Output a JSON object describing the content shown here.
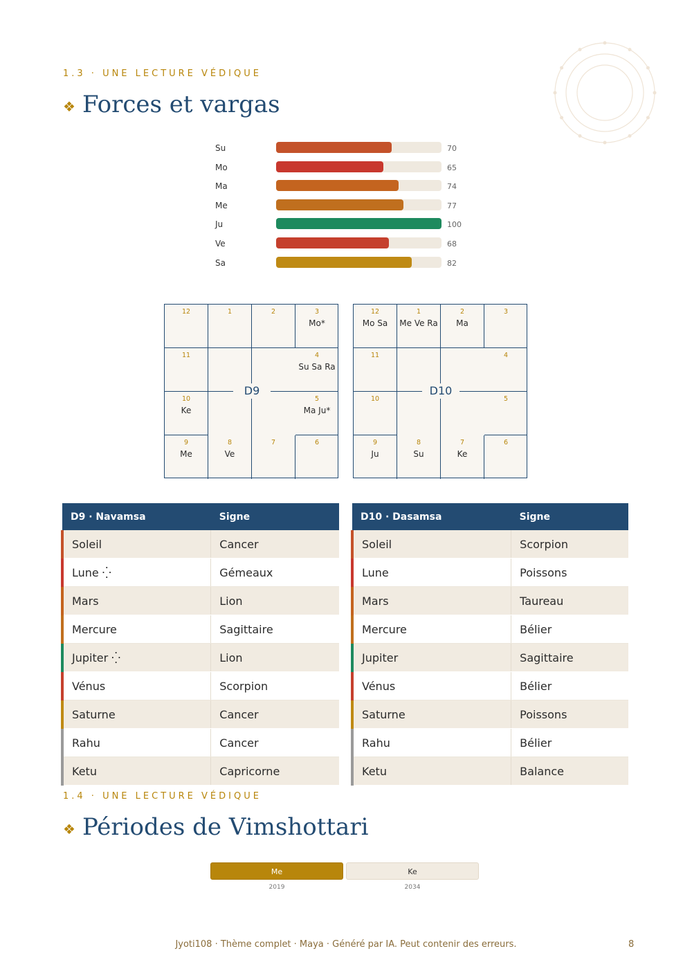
{
  "section1": {
    "eyebrow": "1.3 · UNE LECTURE VÉDIQUE",
    "title": "Forces et vargas"
  },
  "strengths": [
    {
      "planet": "Su",
      "value": 70,
      "color": "#c4522a"
    },
    {
      "planet": "Mo",
      "value": 65,
      "color": "#c8382e"
    },
    {
      "planet": "Ma",
      "value": 74,
      "color": "#c4641f"
    },
    {
      "planet": "Me",
      "value": 77,
      "color": "#c06f1e"
    },
    {
      "planet": "Ju",
      "value": 100,
      "color": "#1e8a5e"
    },
    {
      "planet": "Ve",
      "value": 68,
      "color": "#c5402d"
    },
    {
      "planet": "Sa",
      "value": 82,
      "color": "#bf8a14"
    }
  ],
  "charts": [
    {
      "name": "D9",
      "cells": [
        {
          "house": "12",
          "planets": ""
        },
        {
          "house": "1",
          "planets": ""
        },
        {
          "house": "2",
          "planets": ""
        },
        {
          "house": "3",
          "planets": "Mo*"
        },
        {
          "house": "11",
          "planets": ""
        },
        {
          "house": "4",
          "planets": "Su Sa Ra"
        },
        {
          "house": "10",
          "planets": "Ke"
        },
        {
          "house": "5",
          "planets": "Ma Ju*"
        },
        {
          "house": "9",
          "planets": "Me"
        },
        {
          "house": "8",
          "planets": "Ve"
        },
        {
          "house": "7",
          "planets": ""
        },
        {
          "house": "6",
          "planets": ""
        }
      ]
    },
    {
      "name": "D10",
      "cells": [
        {
          "house": "12",
          "planets": "Mo Sa"
        },
        {
          "house": "1",
          "planets": "Me Ve Ra"
        },
        {
          "house": "2",
          "planets": "Ma"
        },
        {
          "house": "3",
          "planets": ""
        },
        {
          "house": "11",
          "planets": ""
        },
        {
          "house": "4",
          "planets": ""
        },
        {
          "house": "10",
          "planets": ""
        },
        {
          "house": "5",
          "planets": ""
        },
        {
          "house": "9",
          "planets": "Ju"
        },
        {
          "house": "8",
          "planets": "Su"
        },
        {
          "house": "7",
          "planets": "Ke"
        },
        {
          "house": "6",
          "planets": ""
        }
      ]
    }
  ],
  "tables": [
    {
      "headers": [
        "D9 · Navamsa",
        "Signe"
      ],
      "rows": [
        {
          "planet": "Soleil",
          "sign": "Cancer",
          "color": "#c4522a"
        },
        {
          "planet": "Lune ⁛",
          "sign": "Gémeaux",
          "color": "#c8382e"
        },
        {
          "planet": "Mars",
          "sign": "Lion",
          "color": "#c4641f"
        },
        {
          "planet": "Mercure",
          "sign": "Sagittaire",
          "color": "#c06f1e"
        },
        {
          "planet": "Jupiter ⁛",
          "sign": "Lion",
          "color": "#1e8a5e"
        },
        {
          "planet": "Vénus",
          "sign": "Scorpion",
          "color": "#c5402d"
        },
        {
          "planet": "Saturne",
          "sign": "Cancer",
          "color": "#bf8a14"
        },
        {
          "planet": "Rahu",
          "sign": "Cancer",
          "color": "#9a9a9a"
        },
        {
          "planet": "Ketu",
          "sign": "Capricorne",
          "color": "#9a9a9a"
        }
      ]
    },
    {
      "headers": [
        "D10 · Dasamsa",
        "Signe"
      ],
      "rows": [
        {
          "planet": "Soleil",
          "sign": "Scorpion",
          "color": "#c4522a"
        },
        {
          "planet": "Lune",
          "sign": "Poissons",
          "color": "#c8382e"
        },
        {
          "planet": "Mars",
          "sign": "Taureau",
          "color": "#c4641f"
        },
        {
          "planet": "Mercure",
          "sign": "Bélier",
          "color": "#c06f1e"
        },
        {
          "planet": "Jupiter",
          "sign": "Sagittaire",
          "color": "#1e8a5e"
        },
        {
          "planet": "Vénus",
          "sign": "Bélier",
          "color": "#c5402d"
        },
        {
          "planet": "Saturne",
          "sign": "Poissons",
          "color": "#bf8a14"
        },
        {
          "planet": "Rahu",
          "sign": "Bélier",
          "color": "#9a9a9a"
        },
        {
          "planet": "Ketu",
          "sign": "Balance",
          "color": "#9a9a9a"
        }
      ]
    }
  ],
  "section2": {
    "eyebrow": "1.4 · UNE LECTURE VÉDIQUE",
    "title": "Périodes de Vimshottari"
  },
  "periods": [
    {
      "lord": "Me",
      "year": "2019",
      "active": true
    },
    {
      "lord": "Ke",
      "year": "2034",
      "active": false
    }
  ],
  "footer": {
    "text": "Jyoti108 · Thème complet · Maya · Généré par IA. Peut contenir des erreurs.",
    "page": "8"
  }
}
